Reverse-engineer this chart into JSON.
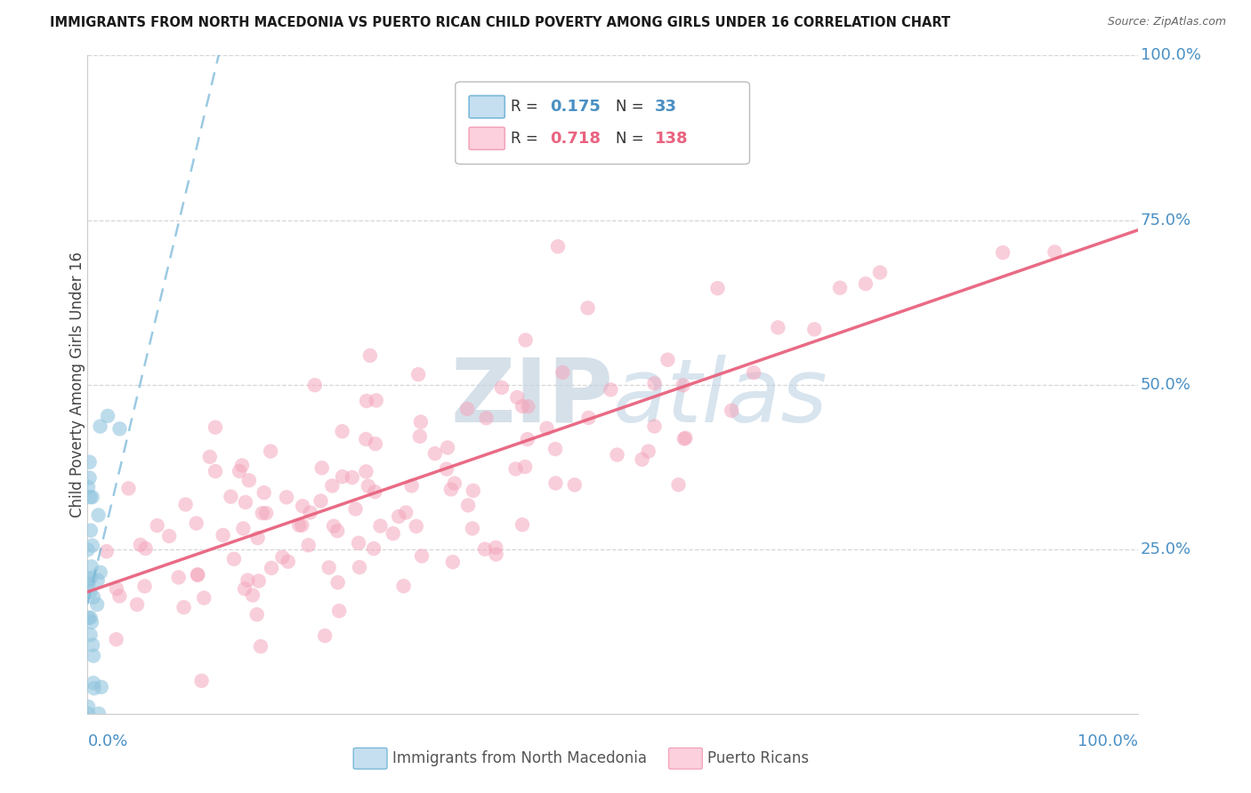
{
  "title": "IMMIGRANTS FROM NORTH MACEDONIA VS PUERTO RICAN CHILD POVERTY AMONG GIRLS UNDER 16 CORRELATION CHART",
  "source": "Source: ZipAtlas.com",
  "xlabel_blue": "Immigrants from North Macedonia",
  "xlabel_pink": "Puerto Ricans",
  "ylabel": "Child Poverty Among Girls Under 16",
  "legend_blue_R": "0.175",
  "legend_blue_N": "33",
  "legend_pink_R": "0.718",
  "legend_pink_N": "138",
  "blue_color": "#92c5de",
  "pink_color": "#f4a6bc",
  "blue_line_color": "#7ab8d9",
  "pink_line_color": "#e8637f",
  "watermark_zip": "ZIP",
  "watermark_atlas": "atlas",
  "xaxis_left_label": "0.0%",
  "xaxis_right_label": "100.0%",
  "yaxis_right_labels": [
    "100.0%",
    "75.0%",
    "50.0%",
    "25.0%"
  ],
  "grid_color": "#cccccc",
  "bg_color": "#ffffff",
  "blue_seed": 7,
  "pink_seed": 42
}
